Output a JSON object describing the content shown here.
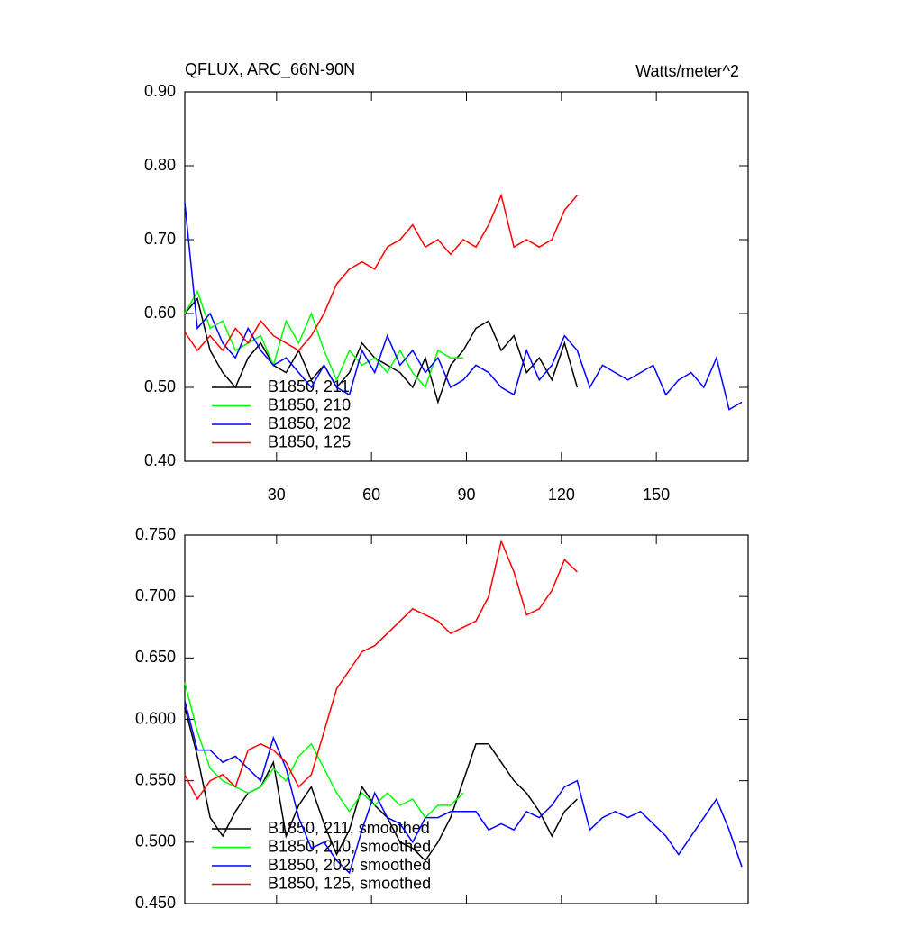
{
  "chart_data": [
    {
      "type": "line",
      "title": "QFLUX, ARC_66N-90N",
      "units_label": "Watts/meter^2",
      "x": [
        1,
        5,
        9,
        13,
        17,
        21,
        25,
        29,
        33,
        37,
        41,
        45,
        49,
        53,
        57,
        61,
        65,
        69,
        73,
        77,
        81,
        85,
        89,
        93,
        97,
        101,
        105,
        109,
        113,
        117,
        121,
        125,
        129,
        133,
        137,
        141,
        145,
        149,
        153,
        157,
        161,
        165,
        169,
        173,
        177
      ],
      "xlim": [
        1,
        179
      ],
      "xticks": [
        30,
        60,
        90,
        120,
        150
      ],
      "ylim": [
        0.4,
        0.9
      ],
      "yticks": [
        {
          "value": 0.4,
          "label": "0.40"
        },
        {
          "value": 0.5,
          "label": "0.50"
        },
        {
          "value": 0.6,
          "label": "0.60"
        },
        {
          "value": 0.7,
          "label": "0.70"
        },
        {
          "value": 0.8,
          "label": "0.80"
        },
        {
          "value": 0.9,
          "label": "0.90"
        }
      ],
      "series": [
        {
          "name": "B1850, 211",
          "color": "#000000",
          "values": [
            0.6,
            0.62,
            0.55,
            0.52,
            0.5,
            0.54,
            0.56,
            0.53,
            0.52,
            0.55,
            0.51,
            0.53,
            0.5,
            0.52,
            0.56,
            0.54,
            0.53,
            0.52,
            0.5,
            0.54,
            0.48,
            0.53,
            0.55,
            0.58,
            0.59,
            0.55,
            0.57,
            0.52,
            0.54,
            0.51,
            0.56,
            0.5,
            null,
            null,
            null,
            null,
            null,
            null,
            null,
            null,
            null,
            null,
            null,
            null,
            null
          ]
        },
        {
          "name": "B1850, 210",
          "color": "#00ff00",
          "values": [
            0.6,
            0.63,
            0.58,
            0.59,
            0.55,
            0.56,
            0.57,
            0.53,
            0.59,
            0.56,
            0.6,
            0.55,
            0.51,
            0.55,
            0.53,
            0.54,
            0.52,
            0.55,
            0.52,
            0.5,
            0.55,
            0.54,
            0.54,
            null,
            null,
            null,
            null,
            null,
            null,
            null,
            null,
            null,
            null,
            null,
            null,
            null,
            null,
            null,
            null,
            null,
            null,
            null,
            null,
            null,
            null
          ]
        },
        {
          "name": "B1850, 202",
          "color": "#0000ff",
          "values": [
            0.75,
            0.58,
            0.6,
            0.56,
            0.54,
            0.58,
            0.55,
            0.53,
            0.54,
            0.52,
            0.5,
            0.53,
            0.5,
            0.49,
            0.55,
            0.52,
            0.57,
            0.53,
            0.55,
            0.52,
            0.54,
            0.5,
            0.51,
            0.53,
            0.52,
            0.5,
            0.49,
            0.55,
            0.51,
            0.53,
            0.57,
            0.55,
            0.5,
            0.53,
            0.52,
            0.51,
            0.52,
            0.53,
            0.49,
            0.51,
            0.52,
            0.5,
            0.54,
            0.47,
            0.48
          ]
        },
        {
          "name": "B1850, 125",
          "color": "#ff0000",
          "values": [
            0.575,
            0.55,
            0.57,
            0.55,
            0.58,
            0.56,
            0.59,
            0.57,
            0.56,
            0.55,
            0.57,
            0.6,
            0.64,
            0.66,
            0.67,
            0.66,
            0.69,
            0.7,
            0.72,
            0.69,
            0.7,
            0.68,
            0.7,
            0.69,
            0.72,
            0.76,
            0.69,
            0.7,
            0.69,
            0.7,
            0.74,
            0.76,
            null,
            null,
            null,
            null,
            null,
            null,
            null,
            null,
            null,
            null,
            null,
            null,
            null
          ]
        }
      ]
    },
    {
      "type": "line",
      "x": [
        1,
        5,
        9,
        13,
        17,
        21,
        25,
        29,
        33,
        37,
        41,
        45,
        49,
        53,
        57,
        61,
        65,
        69,
        73,
        77,
        81,
        85,
        89,
        93,
        97,
        101,
        105,
        109,
        113,
        117,
        121,
        125,
        129,
        133,
        137,
        141,
        145,
        149,
        153,
        157,
        161,
        165,
        169,
        173,
        177
      ],
      "xlim": [
        1,
        179
      ],
      "xticks": [
        30,
        60,
        90,
        120,
        150
      ],
      "ylim": [
        0.45,
        0.75
      ],
      "yticks": [
        {
          "value": 0.45,
          "label": "0.450"
        },
        {
          "value": 0.5,
          "label": "0.500"
        },
        {
          "value": 0.55,
          "label": "0.550"
        },
        {
          "value": 0.6,
          "label": "0.600"
        },
        {
          "value": 0.65,
          "label": "0.650"
        },
        {
          "value": 0.7,
          "label": "0.700"
        },
        {
          "value": 0.75,
          "label": "0.750"
        }
      ],
      "series": [
        {
          "name": "B1850, 211, smoothed",
          "color": "#000000",
          "values": [
            0.61,
            0.57,
            0.52,
            0.505,
            0.525,
            0.54,
            0.545,
            0.565,
            0.505,
            0.53,
            0.545,
            0.515,
            0.49,
            0.51,
            0.545,
            0.53,
            0.52,
            0.5,
            0.495,
            0.485,
            0.5,
            0.52,
            0.55,
            0.58,
            0.58,
            0.565,
            0.55,
            0.54,
            0.525,
            0.505,
            0.525,
            0.535,
            null,
            null,
            null,
            null,
            null,
            null,
            null,
            null,
            null,
            null,
            null,
            null,
            null
          ]
        },
        {
          "name": "B1850, 210, smoothed",
          "color": "#00ff00",
          "values": [
            0.63,
            0.59,
            0.56,
            0.55,
            0.545,
            0.54,
            0.545,
            0.56,
            0.55,
            0.57,
            0.58,
            0.56,
            0.54,
            0.525,
            0.54,
            0.53,
            0.54,
            0.53,
            0.535,
            0.52,
            0.53,
            0.53,
            0.54,
            null,
            null,
            null,
            null,
            null,
            null,
            null,
            null,
            null,
            null,
            null,
            null,
            null,
            null,
            null,
            null,
            null,
            null,
            null,
            null,
            null,
            null
          ]
        },
        {
          "name": "B1850, 202, smoothed",
          "color": "#0000ff",
          "values": [
            0.615,
            0.575,
            0.575,
            0.565,
            0.57,
            0.56,
            0.55,
            0.585,
            0.56,
            0.52,
            0.495,
            0.5,
            0.485,
            0.475,
            0.51,
            0.54,
            0.52,
            0.515,
            0.5,
            0.52,
            0.52,
            0.525,
            0.525,
            0.525,
            0.51,
            0.515,
            0.51,
            0.525,
            0.52,
            0.53,
            0.545,
            0.55,
            0.51,
            0.52,
            0.525,
            0.52,
            0.525,
            0.515,
            0.505,
            0.49,
            0.505,
            0.52,
            0.535,
            0.51,
            0.48
          ]
        },
        {
          "name": "B1850, 125, smoothed",
          "color": "#ff0000",
          "values": [
            0.555,
            0.535,
            0.55,
            0.555,
            0.545,
            0.575,
            0.58,
            0.575,
            0.565,
            0.545,
            0.555,
            0.59,
            0.625,
            0.64,
            0.655,
            0.66,
            0.67,
            0.68,
            0.69,
            0.685,
            0.68,
            0.67,
            0.675,
            0.68,
            0.7,
            0.745,
            0.72,
            0.685,
            0.69,
            0.705,
            0.73,
            0.72,
            null,
            null,
            null,
            null,
            null,
            null,
            null,
            null,
            null,
            null,
            null,
            null,
            null
          ]
        }
      ]
    }
  ]
}
